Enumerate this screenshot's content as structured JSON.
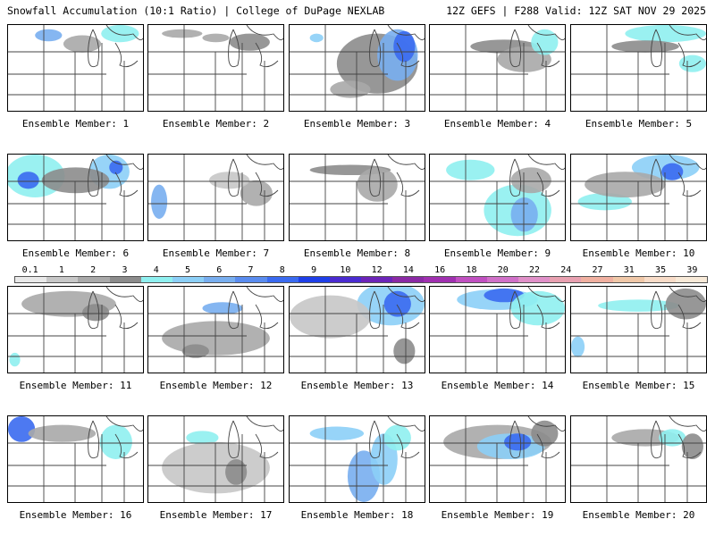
{
  "header": {
    "left": "Snowfall Accumulation (10:1 Ratio) | College of DuPage NEXLAB",
    "right": "12Z GEFS | F288 Valid: 12Z SAT NOV 29 2025"
  },
  "members": [
    {
      "label": "Ensemble Member: 1",
      "snow": [
        [
          0.3,
          0.12,
          0.1,
          0.07,
          6
        ],
        [
          0.55,
          0.22,
          0.14,
          0.1,
          2
        ],
        [
          0.83,
          0.1,
          0.14,
          0.1,
          4
        ]
      ]
    },
    {
      "label": "Ensemble Member: 2",
      "snow": [
        [
          0.25,
          0.1,
          0.15,
          0.05,
          2
        ],
        [
          0.5,
          0.15,
          0.1,
          0.05,
          2
        ],
        [
          0.75,
          0.2,
          0.15,
          0.1,
          3
        ]
      ]
    },
    {
      "label": "Ensemble Member: 3",
      "snow": [
        [
          0.2,
          0.15,
          0.05,
          0.05,
          5
        ],
        [
          0.65,
          0.45,
          0.3,
          0.35,
          3
        ],
        [
          0.8,
          0.35,
          0.15,
          0.3,
          6
        ],
        [
          0.85,
          0.25,
          0.08,
          0.18,
          8
        ],
        [
          0.45,
          0.75,
          0.15,
          0.1,
          2
        ]
      ]
    },
    {
      "label": "Ensemble Member: 4",
      "snow": [
        [
          0.55,
          0.25,
          0.25,
          0.08,
          3
        ],
        [
          0.7,
          0.4,
          0.2,
          0.15,
          2
        ],
        [
          0.85,
          0.2,
          0.1,
          0.15,
          4
        ]
      ]
    },
    {
      "label": "Ensemble Member: 5",
      "snow": [
        [
          0.7,
          0.1,
          0.3,
          0.1,
          4
        ],
        [
          0.55,
          0.25,
          0.25,
          0.07,
          3
        ],
        [
          0.9,
          0.45,
          0.1,
          0.1,
          4
        ]
      ]
    },
    {
      "label": "Ensemble Member: 6",
      "snow": [
        [
          0.2,
          0.25,
          0.22,
          0.25,
          4
        ],
        [
          0.15,
          0.3,
          0.08,
          0.1,
          8
        ],
        [
          0.75,
          0.2,
          0.15,
          0.2,
          5
        ],
        [
          0.5,
          0.3,
          0.25,
          0.15,
          3
        ],
        [
          0.8,
          0.15,
          0.05,
          0.08,
          8
        ]
      ]
    },
    {
      "label": "Ensemble Member: 7",
      "snow": [
        [
          0.08,
          0.55,
          0.06,
          0.2,
          6
        ],
        [
          0.8,
          0.45,
          0.12,
          0.15,
          2
        ],
        [
          0.6,
          0.3,
          0.15,
          0.1,
          1
        ]
      ]
    },
    {
      "label": "Ensemble Member: 8",
      "snow": [
        [
          0.45,
          0.18,
          0.3,
          0.06,
          3
        ],
        [
          0.65,
          0.35,
          0.15,
          0.2,
          2
        ]
      ]
    },
    {
      "label": "Ensemble Member: 9",
      "snow": [
        [
          0.3,
          0.18,
          0.18,
          0.12,
          4
        ],
        [
          0.65,
          0.65,
          0.25,
          0.3,
          4
        ],
        [
          0.7,
          0.7,
          0.1,
          0.2,
          6
        ],
        [
          0.75,
          0.3,
          0.15,
          0.15,
          2
        ]
      ]
    },
    {
      "label": "Ensemble Member: 10",
      "snow": [
        [
          0.7,
          0.15,
          0.25,
          0.15,
          5
        ],
        [
          0.75,
          0.2,
          0.08,
          0.1,
          8
        ],
        [
          0.25,
          0.55,
          0.2,
          0.1,
          4
        ],
        [
          0.4,
          0.35,
          0.3,
          0.15,
          2
        ]
      ]
    },
    {
      "label": "Ensemble Member: 11",
      "snow": [
        [
          0.45,
          0.2,
          0.35,
          0.15,
          2
        ],
        [
          0.65,
          0.3,
          0.1,
          0.1,
          3
        ],
        [
          0.05,
          0.85,
          0.04,
          0.08,
          4
        ]
      ]
    },
    {
      "label": "Ensemble Member: 12",
      "snow": [
        [
          0.55,
          0.25,
          0.15,
          0.07,
          6
        ],
        [
          0.5,
          0.6,
          0.4,
          0.2,
          2
        ],
        [
          0.35,
          0.75,
          0.1,
          0.08,
          3
        ]
      ]
    },
    {
      "label": "Ensemble Member: 13",
      "snow": [
        [
          0.75,
          0.2,
          0.25,
          0.25,
          5
        ],
        [
          0.8,
          0.2,
          0.1,
          0.15,
          8
        ],
        [
          0.3,
          0.35,
          0.3,
          0.25,
          1
        ],
        [
          0.85,
          0.75,
          0.08,
          0.15,
          3
        ]
      ]
    },
    {
      "label": "Ensemble Member: 14",
      "snow": [
        [
          0.5,
          0.15,
          0.3,
          0.12,
          5
        ],
        [
          0.55,
          0.1,
          0.15,
          0.08,
          8
        ],
        [
          0.8,
          0.25,
          0.2,
          0.2,
          4
        ]
      ]
    },
    {
      "label": "Ensemble Member: 15",
      "snow": [
        [
          0.5,
          0.22,
          0.3,
          0.07,
          4
        ],
        [
          0.85,
          0.2,
          0.15,
          0.18,
          3
        ],
        [
          0.05,
          0.7,
          0.05,
          0.12,
          5
        ]
      ]
    },
    {
      "label": "Ensemble Member: 16",
      "snow": [
        [
          0.1,
          0.15,
          0.1,
          0.15,
          8
        ],
        [
          0.4,
          0.2,
          0.25,
          0.1,
          2
        ],
        [
          0.8,
          0.3,
          0.12,
          0.2,
          4
        ]
      ]
    },
    {
      "label": "Ensemble Member: 17",
      "snow": [
        [
          0.4,
          0.25,
          0.12,
          0.08,
          4
        ],
        [
          0.5,
          0.6,
          0.4,
          0.3,
          1
        ],
        [
          0.65,
          0.65,
          0.08,
          0.15,
          3
        ]
      ]
    },
    {
      "label": "Ensemble Member: 18",
      "snow": [
        [
          0.35,
          0.2,
          0.2,
          0.08,
          5
        ],
        [
          0.55,
          0.7,
          0.12,
          0.3,
          6
        ],
        [
          0.7,
          0.5,
          0.1,
          0.3,
          5
        ],
        [
          0.8,
          0.25,
          0.1,
          0.15,
          4
        ]
      ]
    },
    {
      "label": "Ensemble Member: 19",
      "snow": [
        [
          0.5,
          0.3,
          0.4,
          0.2,
          2
        ],
        [
          0.6,
          0.35,
          0.25,
          0.15,
          5
        ],
        [
          0.65,
          0.3,
          0.1,
          0.1,
          8
        ],
        [
          0.85,
          0.2,
          0.1,
          0.15,
          3
        ]
      ]
    },
    {
      "label": "Ensemble Member: 20",
      "snow": [
        [
          0.55,
          0.25,
          0.25,
          0.1,
          2
        ],
        [
          0.75,
          0.25,
          0.1,
          0.1,
          4
        ],
        [
          0.9,
          0.35,
          0.08,
          0.15,
          3
        ]
      ]
    }
  ],
  "colorbar": {
    "labels": [
      "0.1",
      "1",
      "2",
      "3",
      "4",
      "5",
      "6",
      "7",
      "8",
      "9",
      "10",
      "12",
      "14",
      "16",
      "18",
      "20",
      "22",
      "24",
      "27",
      "31",
      "35",
      "39"
    ],
    "colors": [
      "#e9e9e9",
      "#c7c7c7",
      "#a9a9a9",
      "#8c8c8c",
      "#8ff0f0",
      "#8ccff7",
      "#78aeef",
      "#5a8cef",
      "#3a6af0",
      "#1f3fe8",
      "#4a2bd0",
      "#6c24b8",
      "#8b2aa5",
      "#a030b0",
      "#c050c0",
      "#d070c8",
      "#e090c8",
      "#e8a0b0",
      "#f0b0a0",
      "#f0c8a8",
      "#f8dcc8",
      "#f8ead8"
    ]
  },
  "map": {
    "border": "#444444",
    "county": "#9a9a9a"
  }
}
